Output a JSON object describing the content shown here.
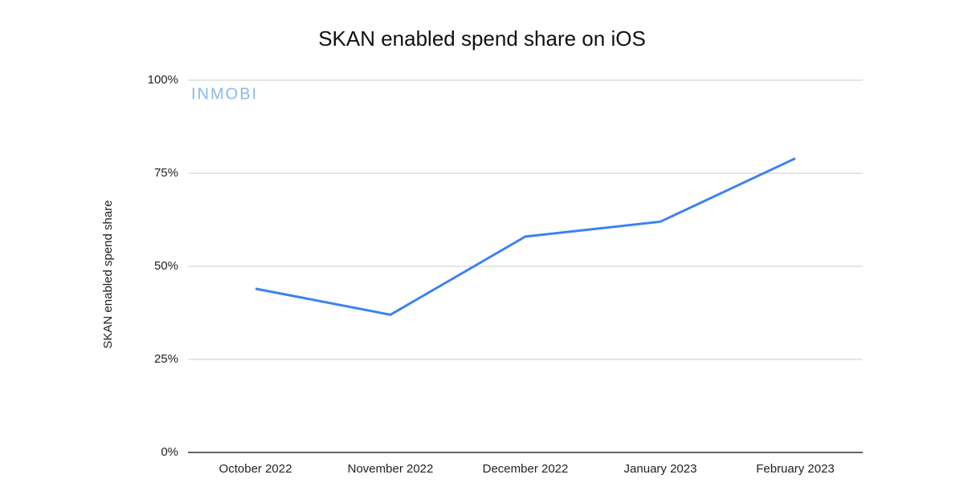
{
  "chart_data": {
    "type": "line",
    "title": "SKAN enabled spend share on iOS",
    "y_label": "SKAN enabled spend share",
    "watermark": "INMOBI",
    "categories": [
      "October 2022",
      "November 2022",
      "December 2022",
      "January 2023",
      "February 2023"
    ],
    "values": [
      44,
      37,
      58,
      62,
      79
    ],
    "color": "#3b82f0",
    "ylim": [
      0,
      100
    ],
    "yticks": [
      {
        "value": 0,
        "label": "0%"
      },
      {
        "value": 25,
        "label": "25%"
      },
      {
        "value": 50,
        "label": "50%"
      },
      {
        "value": 75,
        "label": "75%"
      },
      {
        "value": 100,
        "label": "100%"
      }
    ],
    "grid": true
  }
}
